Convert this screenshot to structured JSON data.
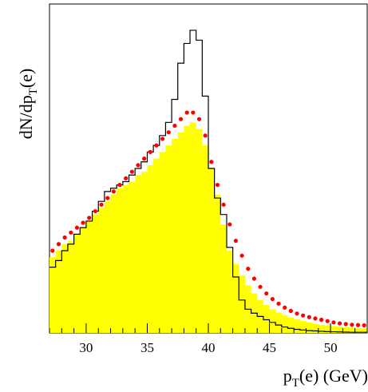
{
  "chart_data": {
    "type": "area",
    "title": "",
    "ylabel": {
      "main": "dN/dp",
      "sub": "T",
      "tail": "(e)"
    },
    "xlabel": {
      "main": "p",
      "sub": "T",
      "tail": "(e) (GeV)"
    },
    "xlim": [
      27,
      53
    ],
    "ylim": [
      0,
      1.0
    ],
    "xticks": [
      30,
      35,
      40,
      45,
      50
    ],
    "xtick_labels": [
      "30",
      "35",
      "40",
      "45",
      "50"
    ],
    "grid": false,
    "legend": "none",
    "colors": {
      "filled": "#ffff00",
      "outline": "#000000",
      "dots": "#ff0000"
    },
    "x": [
      27.0,
      27.5,
      28.0,
      28.5,
      29.0,
      29.5,
      30.0,
      30.5,
      31.0,
      31.5,
      32.0,
      32.5,
      33.0,
      33.5,
      34.0,
      34.5,
      35.0,
      35.5,
      36.0,
      36.5,
      37.0,
      37.5,
      38.0,
      38.5,
      39.0,
      39.5,
      40.0,
      40.5,
      41.0,
      41.5,
      42.0,
      42.5,
      43.0,
      43.5,
      44.0,
      44.5,
      45.0,
      45.5,
      46.0,
      46.5,
      47.0,
      47.5,
      48.0,
      48.5,
      49.0,
      49.5,
      50.0,
      50.5,
      51.0,
      51.5,
      52.0,
      52.5
    ],
    "series": [
      {
        "style": "filled-step",
        "values": [
          0.23,
          0.25,
          0.27,
          0.28,
          0.3,
          0.32,
          0.34,
          0.36,
          0.38,
          0.4,
          0.42,
          0.44,
          0.45,
          0.46,
          0.48,
          0.49,
          0.51,
          0.53,
          0.55,
          0.57,
          0.59,
          0.61,
          0.63,
          0.64,
          0.62,
          0.57,
          0.5,
          0.42,
          0.33,
          0.25,
          0.21,
          0.175,
          0.145,
          0.12,
          0.1,
          0.085,
          0.072,
          0.062,
          0.054,
          0.047,
          0.041,
          0.036,
          0.032,
          0.028,
          0.025,
          0.023,
          0.021,
          0.019,
          0.017,
          0.016,
          0.015,
          0.014
        ]
      },
      {
        "style": "outline-step",
        "values": [
          0.2,
          0.22,
          0.25,
          0.27,
          0.3,
          0.32,
          0.34,
          0.37,
          0.4,
          0.43,
          0.44,
          0.45,
          0.46,
          0.48,
          0.5,
          0.52,
          0.55,
          0.57,
          0.6,
          0.64,
          0.71,
          0.82,
          0.88,
          0.92,
          0.89,
          0.72,
          0.5,
          0.41,
          0.36,
          0.26,
          0.17,
          0.1,
          0.072,
          0.06,
          0.05,
          0.04,
          0.032,
          0.024,
          0.018,
          0.014,
          0.011,
          0.009,
          0.007,
          0.006,
          0.005,
          0.004,
          0.0035,
          0.003,
          0.0025,
          0.002,
          0.002,
          0.002
        ]
      },
      {
        "style": "dots",
        "values": [
          0.25,
          0.27,
          0.29,
          0.305,
          0.32,
          0.335,
          0.35,
          0.37,
          0.39,
          0.41,
          0.43,
          0.45,
          0.47,
          0.49,
          0.51,
          0.53,
          0.55,
          0.57,
          0.59,
          0.61,
          0.63,
          0.65,
          0.67,
          0.67,
          0.65,
          0.6,
          0.52,
          0.45,
          0.39,
          0.33,
          0.28,
          0.235,
          0.195,
          0.165,
          0.14,
          0.12,
          0.103,
          0.089,
          0.077,
          0.067,
          0.059,
          0.053,
          0.048,
          0.044,
          0.04,
          0.036,
          0.032,
          0.029,
          0.027,
          0.025,
          0.024,
          0.023
        ]
      }
    ]
  }
}
